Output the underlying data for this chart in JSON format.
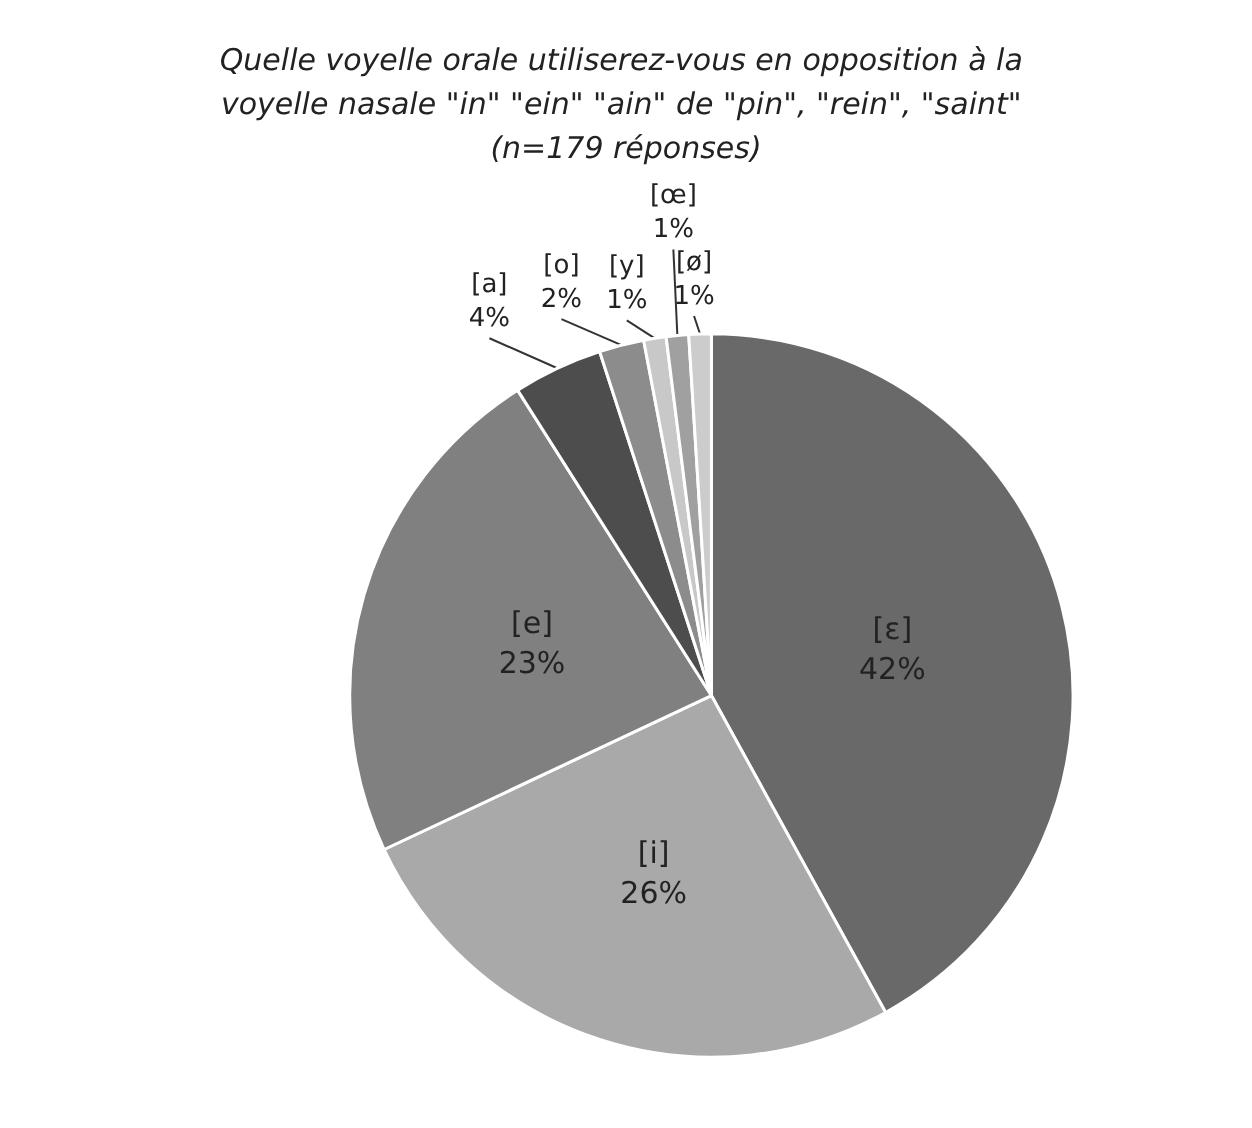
{
  "chart_data": {
    "type": "pie",
    "title": "Quelle voyelle orale utiliserez-vous en opposition à la voyelle nasale \"in\" \"ein\" \"ain\" de \"pin\", \"rein\", \"saint\" (n=179 réponses)",
    "categories": [
      "[ε]",
      "[i]",
      "[e]",
      "[a]",
      "[o]",
      "[y]",
      "[œ]",
      "[ø]"
    ],
    "values": [
      42,
      26,
      23,
      4,
      2,
      1,
      1,
      1
    ],
    "value_labels": [
      "42%",
      "26%",
      "23%",
      "4%",
      "2%",
      "1%",
      "1%",
      "1%"
    ],
    "colors": [
      "#696969",
      "#a9a9a9",
      "#808080",
      "#4d4d4d",
      "#8c8c8c",
      "#c8c8c8",
      "#a0a0a0",
      "#cccccc"
    ],
    "legend": false
  }
}
